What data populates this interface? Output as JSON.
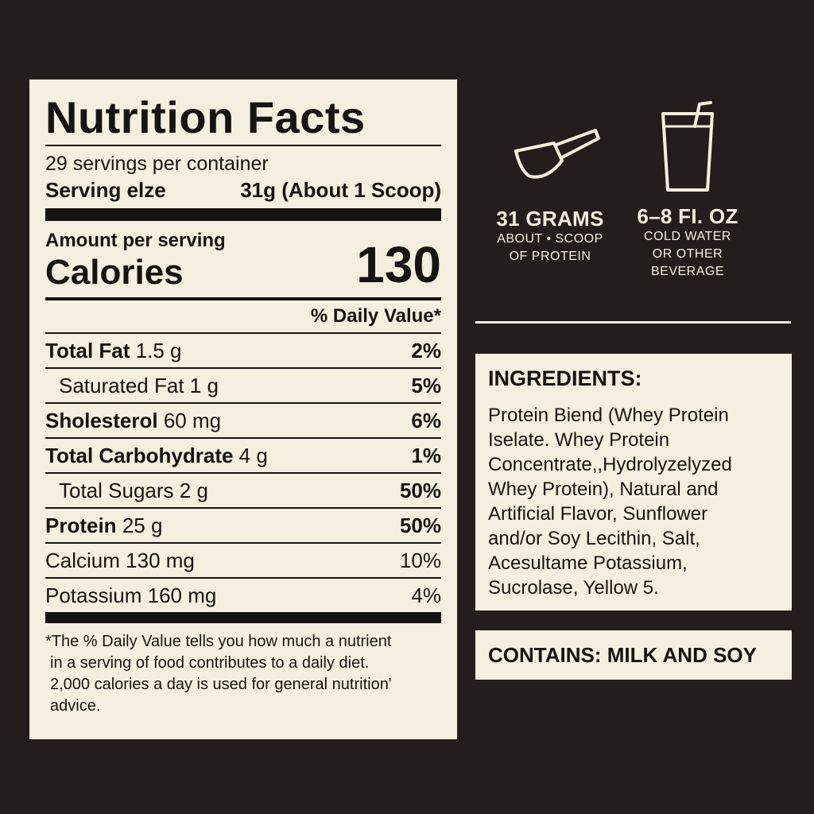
{
  "label": {
    "title": "Nutrition Facts",
    "servings_per_container": "29 servings per container",
    "serving_size_label": "Serving elze",
    "serving_size_value": "31g (About 1 Scoop)",
    "amount_per_serving": "Amount per serving",
    "calories_label": "Calories",
    "calories_value": "130",
    "daily_value_header": "% Daily Value*",
    "rows": [
      {
        "name": "Total Fat",
        "amount": "1.5 g",
        "pct": "2%"
      },
      {
        "name": "Saturated Fat",
        "amount": "1 g",
        "pct": "5%"
      },
      {
        "name": "Sholesterol",
        "amount": "60 mg",
        "pct": "6%"
      },
      {
        "name": "Total Carbohydrate",
        "amount": "4 g",
        "pct": "1%"
      },
      {
        "name": "Total Sugars",
        "amount": "2 g",
        "pct": "50%"
      },
      {
        "name": "Protein",
        "amount": "25 g",
        "pct": "50%"
      },
      {
        "name": "Calcium",
        "amount": "130 mg",
        "pct": "10%"
      },
      {
        "name": "Potassium",
        "amount": "160 mg",
        "pct": "4%"
      }
    ],
    "footnote": [
      "*The % Daily Value tells you how much a nutrient",
      "in a serving of food contributes to a daily diet.",
      "2,000 calories a day is used for general nutrition'",
      "advice."
    ]
  },
  "icons": {
    "scoop": {
      "icon": "scoop-icon",
      "title": "31 GRAMS",
      "line1": "ABOUT • SCOOP",
      "line2": "OF PROTEIN"
    },
    "glass": {
      "icon": "glass-icon",
      "title": "6–8 FI. OZ",
      "line1": "COLD WATER",
      "line2": "OR OTHER",
      "line3": "BEVERAGE"
    }
  },
  "ingredients": {
    "title": "INGREDIENTS:",
    "lines": [
      "Protein Biend (Whey Protein",
      "Iselate. Whey Protein",
      "Concentrate,,Hydrolyzelyzed",
      "Whey Protein), Natural and",
      "Artificial Flavor, Sunflower",
      "and/or Soy Lecithin, Salt,",
      "Acesultame Potassium,",
      "Sucrolase, Yellow 5."
    ]
  },
  "contains": "CONTAINS: MILK AND SOY",
  "colors": {
    "background": "#231e1c",
    "panel": "#f4efde",
    "ink": "#161412"
  }
}
